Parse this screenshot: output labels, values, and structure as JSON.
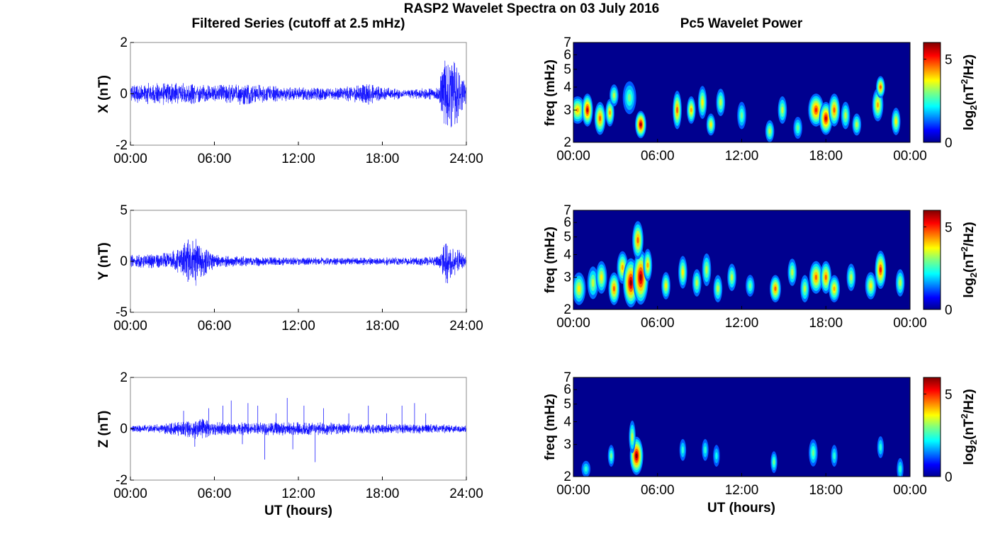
{
  "figure": {
    "title": "RASP2 Wavelet Spectra on 03 July 2016",
    "left_title": "Filtered Series (cutoff at 2.5 mHz)",
    "right_title": "Pc5 Wavelet Power"
  },
  "colors": {
    "trace": "#0000ff",
    "background": "#ffffff",
    "axis": "#000000"
  },
  "chart_data": [
    {
      "type": "line",
      "name": "X filtered series",
      "ylabel": "X (nT)",
      "xlabel": "",
      "xlim": [
        0,
        24
      ],
      "ylim": [
        -2,
        2
      ],
      "xticks": [
        "00:00",
        "06:00",
        "12:00",
        "18:00",
        "24:00"
      ],
      "yticks": [
        "2",
        "0",
        "-2"
      ],
      "envelope_hours": [
        0,
        2,
        4,
        5,
        6,
        8,
        10,
        12,
        14,
        16,
        17,
        18,
        20,
        22,
        22.6,
        24
      ],
      "envelope_amplitude_nT": [
        0.3,
        0.35,
        0.35,
        0.3,
        0.25,
        0.35,
        0.25,
        0.2,
        0.2,
        0.25,
        0.35,
        0.2,
        0.15,
        0.2,
        1.5,
        0.35
      ]
    },
    {
      "type": "line",
      "name": "Y filtered series",
      "ylabel": "Y (nT)",
      "xlabel": "",
      "xlim": [
        0,
        24
      ],
      "ylim": [
        -5,
        5
      ],
      "xticks": [
        "00:00",
        "06:00",
        "12:00",
        "18:00",
        "24:00"
      ],
      "yticks": [
        "5",
        "0",
        "-5"
      ],
      "envelope_hours": [
        0,
        2,
        3,
        4,
        4.5,
        5,
        6,
        8,
        12,
        16,
        18,
        20,
        22,
        22.6,
        24
      ],
      "envelope_amplitude_nT": [
        0.5,
        0.6,
        0.8,
        1.6,
        2.2,
        1.5,
        0.5,
        0.4,
        0.3,
        0.3,
        0.3,
        0.3,
        0.4,
        1.8,
        0.4
      ]
    },
    {
      "type": "line",
      "name": "Z filtered series",
      "ylabel": "Z (nT)",
      "xlabel": "UT (hours)",
      "xlim": [
        0,
        24
      ],
      "ylim": [
        -2,
        2
      ],
      "xticks": [
        "00:00",
        "06:00",
        "12:00",
        "18:00",
        "24:00"
      ],
      "yticks": [
        "2",
        "0",
        "-2"
      ],
      "envelope_hours": [
        0,
        2,
        4,
        5,
        6,
        8,
        10,
        12,
        14,
        16,
        18,
        20,
        22,
        24
      ],
      "envelope_amplitude_nT": [
        0.1,
        0.15,
        0.25,
        0.35,
        0.2,
        0.2,
        0.2,
        0.2,
        0.2,
        0.15,
        0.15,
        0.15,
        0.15,
        0.1
      ],
      "spikes_hours": [
        3.8,
        4.6,
        5.6,
        6.6,
        7.2,
        8.0,
        8.4,
        9.1,
        9.6,
        10.4,
        11.2,
        11.6,
        12.4,
        13.2,
        13.8,
        15.6,
        17.0,
        18.3,
        19.4,
        20.3,
        21.1
      ],
      "spikes_nT": [
        0.7,
        -0.7,
        0.8,
        0.9,
        1.1,
        -0.6,
        1.0,
        0.9,
        -1.2,
        0.6,
        1.2,
        -0.8,
        0.9,
        -1.3,
        0.8,
        0.6,
        0.9,
        0.6,
        0.9,
        1.0,
        0.6
      ]
    },
    {
      "type": "heatmap",
      "name": "X wavelet power",
      "ylabel": "freq (mHz)",
      "xlabel": "",
      "xlim": [
        0,
        24
      ],
      "ylim": [
        2,
        7
      ],
      "y_scale": "log",
      "xticks": [
        "00:00",
        "06:00",
        "12:00",
        "18:00",
        "00:00"
      ],
      "yticks": [
        "7",
        "6",
        "5",
        "4",
        "3",
        "2"
      ],
      "colorbar_label": "log2(nT2/Hz)",
      "colorbar_ticks": [
        "5",
        "0"
      ],
      "clim": [
        0,
        6
      ],
      "colormap": "jet",
      "blobs": [
        [
          0.3,
          3.0,
          0.35,
          0.25,
          4
        ],
        [
          1.0,
          3.0,
          0.25,
          0.3,
          5.5
        ],
        [
          1.9,
          2.7,
          0.25,
          0.3,
          4.5
        ],
        [
          2.6,
          2.9,
          0.2,
          0.25,
          4
        ],
        [
          2.9,
          3.6,
          0.2,
          0.2,
          3
        ],
        [
          4.0,
          3.5,
          0.3,
          0.3,
          2.5
        ],
        [
          4.8,
          2.5,
          0.25,
          0.25,
          5.8
        ],
        [
          7.4,
          3.0,
          0.2,
          0.35,
          4.5
        ],
        [
          8.4,
          3.0,
          0.2,
          0.25,
          4
        ],
        [
          9.2,
          3.3,
          0.2,
          0.3,
          3.5
        ],
        [
          9.8,
          2.5,
          0.2,
          0.2,
          3.5
        ],
        [
          10.5,
          3.3,
          0.2,
          0.25,
          3
        ],
        [
          12.0,
          2.8,
          0.2,
          0.25,
          2.5
        ],
        [
          14.0,
          2.3,
          0.2,
          0.2,
          3
        ],
        [
          14.9,
          3.0,
          0.2,
          0.25,
          3
        ],
        [
          16.0,
          2.4,
          0.2,
          0.2,
          2.5
        ],
        [
          17.3,
          3.0,
          0.35,
          0.3,
          5
        ],
        [
          18.0,
          2.7,
          0.3,
          0.3,
          5.5
        ],
        [
          18.6,
          3.0,
          0.25,
          0.3,
          4.5
        ],
        [
          19.4,
          2.8,
          0.2,
          0.25,
          3
        ],
        [
          20.2,
          2.5,
          0.2,
          0.2,
          3
        ],
        [
          21.7,
          3.2,
          0.25,
          0.3,
          4
        ],
        [
          21.9,
          4.0,
          0.2,
          0.2,
          4.5
        ],
        [
          23.0,
          2.6,
          0.2,
          0.25,
          3.5
        ]
      ]
    },
    {
      "type": "heatmap",
      "name": "Y wavelet power",
      "ylabel": "freq (mHz)",
      "xlabel": "",
      "xlim": [
        0,
        24
      ],
      "ylim": [
        2,
        7
      ],
      "y_scale": "log",
      "xticks": [
        "00:00",
        "06:00",
        "12:00",
        "18:00",
        "00:00"
      ],
      "yticks": [
        "7",
        "6",
        "5",
        "4",
        "3",
        "2"
      ],
      "colorbar_label": "log2(nT2/Hz)",
      "colorbar_ticks": [
        "5",
        "0"
      ],
      "clim": [
        0,
        6
      ],
      "colormap": "jet",
      "blobs": [
        [
          0.4,
          2.6,
          0.3,
          0.3,
          3.5
        ],
        [
          1.4,
          2.8,
          0.25,
          0.3,
          3
        ],
        [
          2.0,
          3.0,
          0.25,
          0.3,
          3.5
        ],
        [
          2.9,
          2.6,
          0.25,
          0.3,
          4.5
        ],
        [
          3.5,
          3.4,
          0.25,
          0.3,
          4
        ],
        [
          4.1,
          2.8,
          0.35,
          0.45,
          6
        ],
        [
          4.8,
          3.0,
          0.35,
          0.5,
          6
        ],
        [
          4.6,
          4.8,
          0.25,
          0.35,
          4.5
        ],
        [
          5.3,
          3.5,
          0.2,
          0.3,
          4
        ],
        [
          6.6,
          2.7,
          0.2,
          0.25,
          3.5
        ],
        [
          7.8,
          3.2,
          0.2,
          0.3,
          3.5
        ],
        [
          8.8,
          2.8,
          0.2,
          0.25,
          3
        ],
        [
          9.5,
          3.3,
          0.2,
          0.3,
          3
        ],
        [
          10.3,
          2.6,
          0.2,
          0.25,
          3
        ],
        [
          11.3,
          3.0,
          0.2,
          0.25,
          3
        ],
        [
          12.6,
          2.7,
          0.2,
          0.2,
          2.5
        ],
        [
          14.4,
          2.6,
          0.25,
          0.25,
          4.5
        ],
        [
          15.6,
          3.2,
          0.2,
          0.25,
          3
        ],
        [
          16.5,
          2.6,
          0.2,
          0.25,
          3
        ],
        [
          17.3,
          3.0,
          0.3,
          0.3,
          4.5
        ],
        [
          18.0,
          3.0,
          0.25,
          0.3,
          4.5
        ],
        [
          18.6,
          2.6,
          0.25,
          0.25,
          4
        ],
        [
          19.8,
          3.0,
          0.2,
          0.25,
          3
        ],
        [
          21.2,
          2.7,
          0.25,
          0.25,
          3.5
        ],
        [
          21.9,
          3.3,
          0.25,
          0.35,
          5
        ],
        [
          23.3,
          2.8,
          0.2,
          0.25,
          3
        ]
      ]
    },
    {
      "type": "heatmap",
      "name": "Z wavelet power",
      "ylabel": "freq (mHz)",
      "xlabel": "UT (hours)",
      "xlim": [
        0,
        24
      ],
      "ylim": [
        2,
        7
      ],
      "y_scale": "log",
      "xticks": [
        "00:00",
        "06:00",
        "12:00",
        "18:00",
        "00:00"
      ],
      "yticks": [
        "7",
        "6",
        "5",
        "4",
        "3",
        "2"
      ],
      "colorbar_label": "log2(nT2/Hz)",
      "colorbar_ticks": [
        "5",
        "0"
      ],
      "clim": [
        0,
        6
      ],
      "colormap": "jet",
      "blobs": [
        [
          0.9,
          2.2,
          0.2,
          0.15,
          2
        ],
        [
          2.7,
          2.6,
          0.15,
          0.2,
          2.5
        ],
        [
          4.5,
          2.6,
          0.3,
          0.35,
          6
        ],
        [
          4.2,
          3.3,
          0.15,
          0.3,
          3
        ],
        [
          7.8,
          2.8,
          0.15,
          0.2,
          2
        ],
        [
          9.4,
          2.8,
          0.15,
          0.2,
          2
        ],
        [
          10.2,
          2.6,
          0.15,
          0.2,
          1.8
        ],
        [
          14.3,
          2.4,
          0.15,
          0.2,
          2.5
        ],
        [
          17.1,
          2.7,
          0.2,
          0.25,
          2.5
        ],
        [
          18.6,
          2.6,
          0.15,
          0.2,
          2
        ],
        [
          21.9,
          2.9,
          0.15,
          0.2,
          2
        ],
        [
          23.3,
          2.2,
          0.15,
          0.2,
          2
        ]
      ]
    }
  ]
}
